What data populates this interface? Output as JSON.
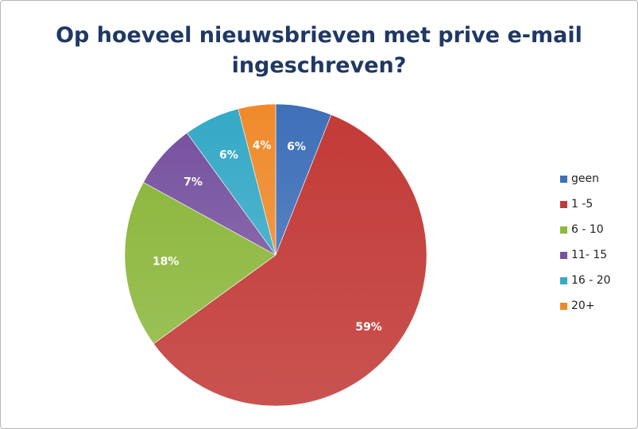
{
  "chart_data": {
    "type": "pie",
    "title_lines": [
      "Op hoeveel nieuwsbrieven met prive e-mail",
      "ingeschreven?"
    ],
    "slices": [
      {
        "label": "geen",
        "value": 6,
        "data_label": "6%",
        "color": "#3e6fb8"
      },
      {
        "label": "1 -5",
        "value": 59,
        "data_label": "59%",
        "color": "#c23b38"
      },
      {
        "label": "6 - 10",
        "value": 18,
        "data_label": "18%",
        "color": "#8db83f"
      },
      {
        "label": "11- 15",
        "value": 7,
        "data_label": "7%",
        "color": "#7752a0"
      },
      {
        "label": "16 - 20",
        "value": 6,
        "data_label": "6%",
        "color": "#35a9c6"
      },
      {
        "label": "20+",
        "value": 4,
        "data_label": "4%",
        "color": "#ef8a2b"
      }
    ],
    "legend_position": "right",
    "start_angle": "top",
    "direction": "clockwise"
  }
}
